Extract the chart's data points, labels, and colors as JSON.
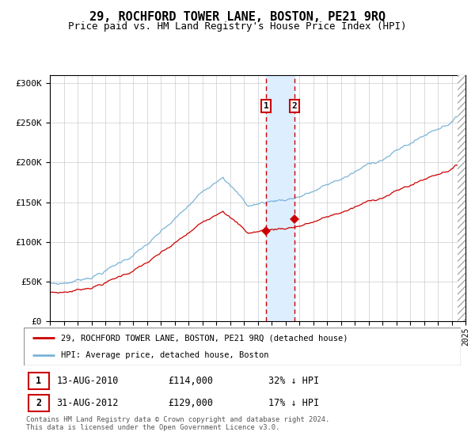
{
  "title": "29, ROCHFORD TOWER LANE, BOSTON, PE21 9RQ",
  "subtitle": "Price paid vs. HM Land Registry's House Price Index (HPI)",
  "title_fontsize": 11,
  "subtitle_fontsize": 9,
  "x_start_year": 1995,
  "x_end_year": 2025,
  "ylim": [
    0,
    310000
  ],
  "yticks": [
    0,
    50000,
    100000,
    150000,
    200000,
    250000,
    300000
  ],
  "ytick_labels": [
    "£0",
    "£50K",
    "£100K",
    "£150K",
    "£200K",
    "£250K",
    "£300K"
  ],
  "hpi_color": "#7ab4d8",
  "price_color": "#cc0000",
  "sale1_date_num": 2010.617,
  "sale1_price": 114000,
  "sale2_date_num": 2012.664,
  "sale2_price": 129000,
  "vline_color": "#cc0000",
  "shade_color": "#ddeeff",
  "legend_label1": "29, ROCHFORD TOWER LANE, BOSTON, PE21 9RQ (detached house)",
  "legend_label2": "HPI: Average price, detached house, Boston",
  "footer1": "Contains HM Land Registry data © Crown copyright and database right 2024.",
  "footer2": "This data is licensed under the Open Government Licence v3.0.",
  "row1": [
    "1",
    "13-AUG-2010",
    "£114,000",
    "32% ↓ HPI"
  ],
  "row2": [
    "2",
    "31-AUG-2012",
    "£129,000",
    "17% ↓ HPI"
  ],
  "background_color": "#ffffff",
  "hpi_seed": 10,
  "price_seed": 20,
  "n_points": 361
}
